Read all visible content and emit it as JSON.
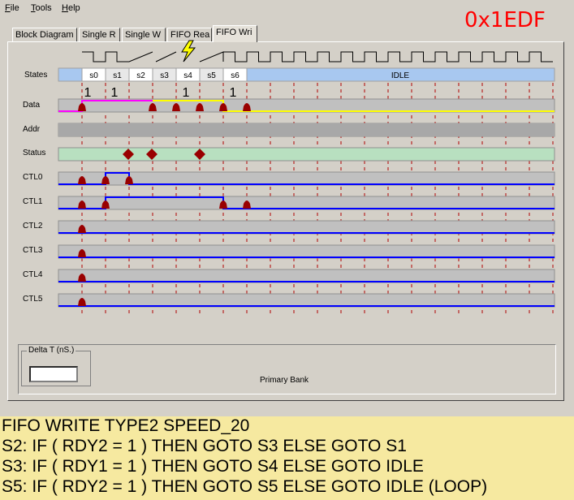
{
  "menu": [
    {
      "name": "menu-file",
      "first": "F",
      "rest": "ile"
    },
    {
      "name": "menu-tools",
      "first": "T",
      "rest": "ools"
    },
    {
      "name": "menu-help",
      "first": "H",
      "rest": "elp"
    }
  ],
  "hex_value": "0x1EDF",
  "tabs": [
    {
      "label": "Block Diagram",
      "active": false
    },
    {
      "label": "Single R",
      "active": false
    },
    {
      "label": "Single W",
      "active": false
    },
    {
      "label": "FIFO Rea",
      "active": false
    },
    {
      "label": "FIFO Wri",
      "active": true
    }
  ],
  "states_label": "States",
  "states": [
    "s0",
    "s1",
    "s2",
    "s3",
    "s4",
    "s5",
    "s6",
    "IDLE"
  ],
  "data_counts": [
    "1",
    "1",
    "1",
    "1"
  ],
  "signals": [
    "Data",
    "Addr",
    "Status",
    "CTL0",
    "CTL1",
    "CTL2",
    "CTL3",
    "CTL4",
    "CTL5"
  ],
  "colors": {
    "magenta": "#ff00ff",
    "yellow": "#ffff00",
    "blue": "#0000ff",
    "marker": "#990000",
    "state_idle": "#a8c8f0",
    "status_fill": "#b8e0c0"
  },
  "delta": {
    "label": "Delta T (nS.)",
    "value": ""
  },
  "primary_bank": "Primary Bank",
  "code": {
    "title": "FIFO WRITE TYPE2 SPEED_20",
    "lines": [
      "S2: IF ( RDY2 = 1 ) THEN GOTO S3 ELSE GOTO S1",
      "S3: IF ( RDY1 = 1 ) THEN GOTO S4 ELSE GOTO IDLE",
      "S5: IF ( RDY2 = 1 ) THEN GOTO S5 ELSE GOTO IDLE (LOOP)"
    ]
  }
}
